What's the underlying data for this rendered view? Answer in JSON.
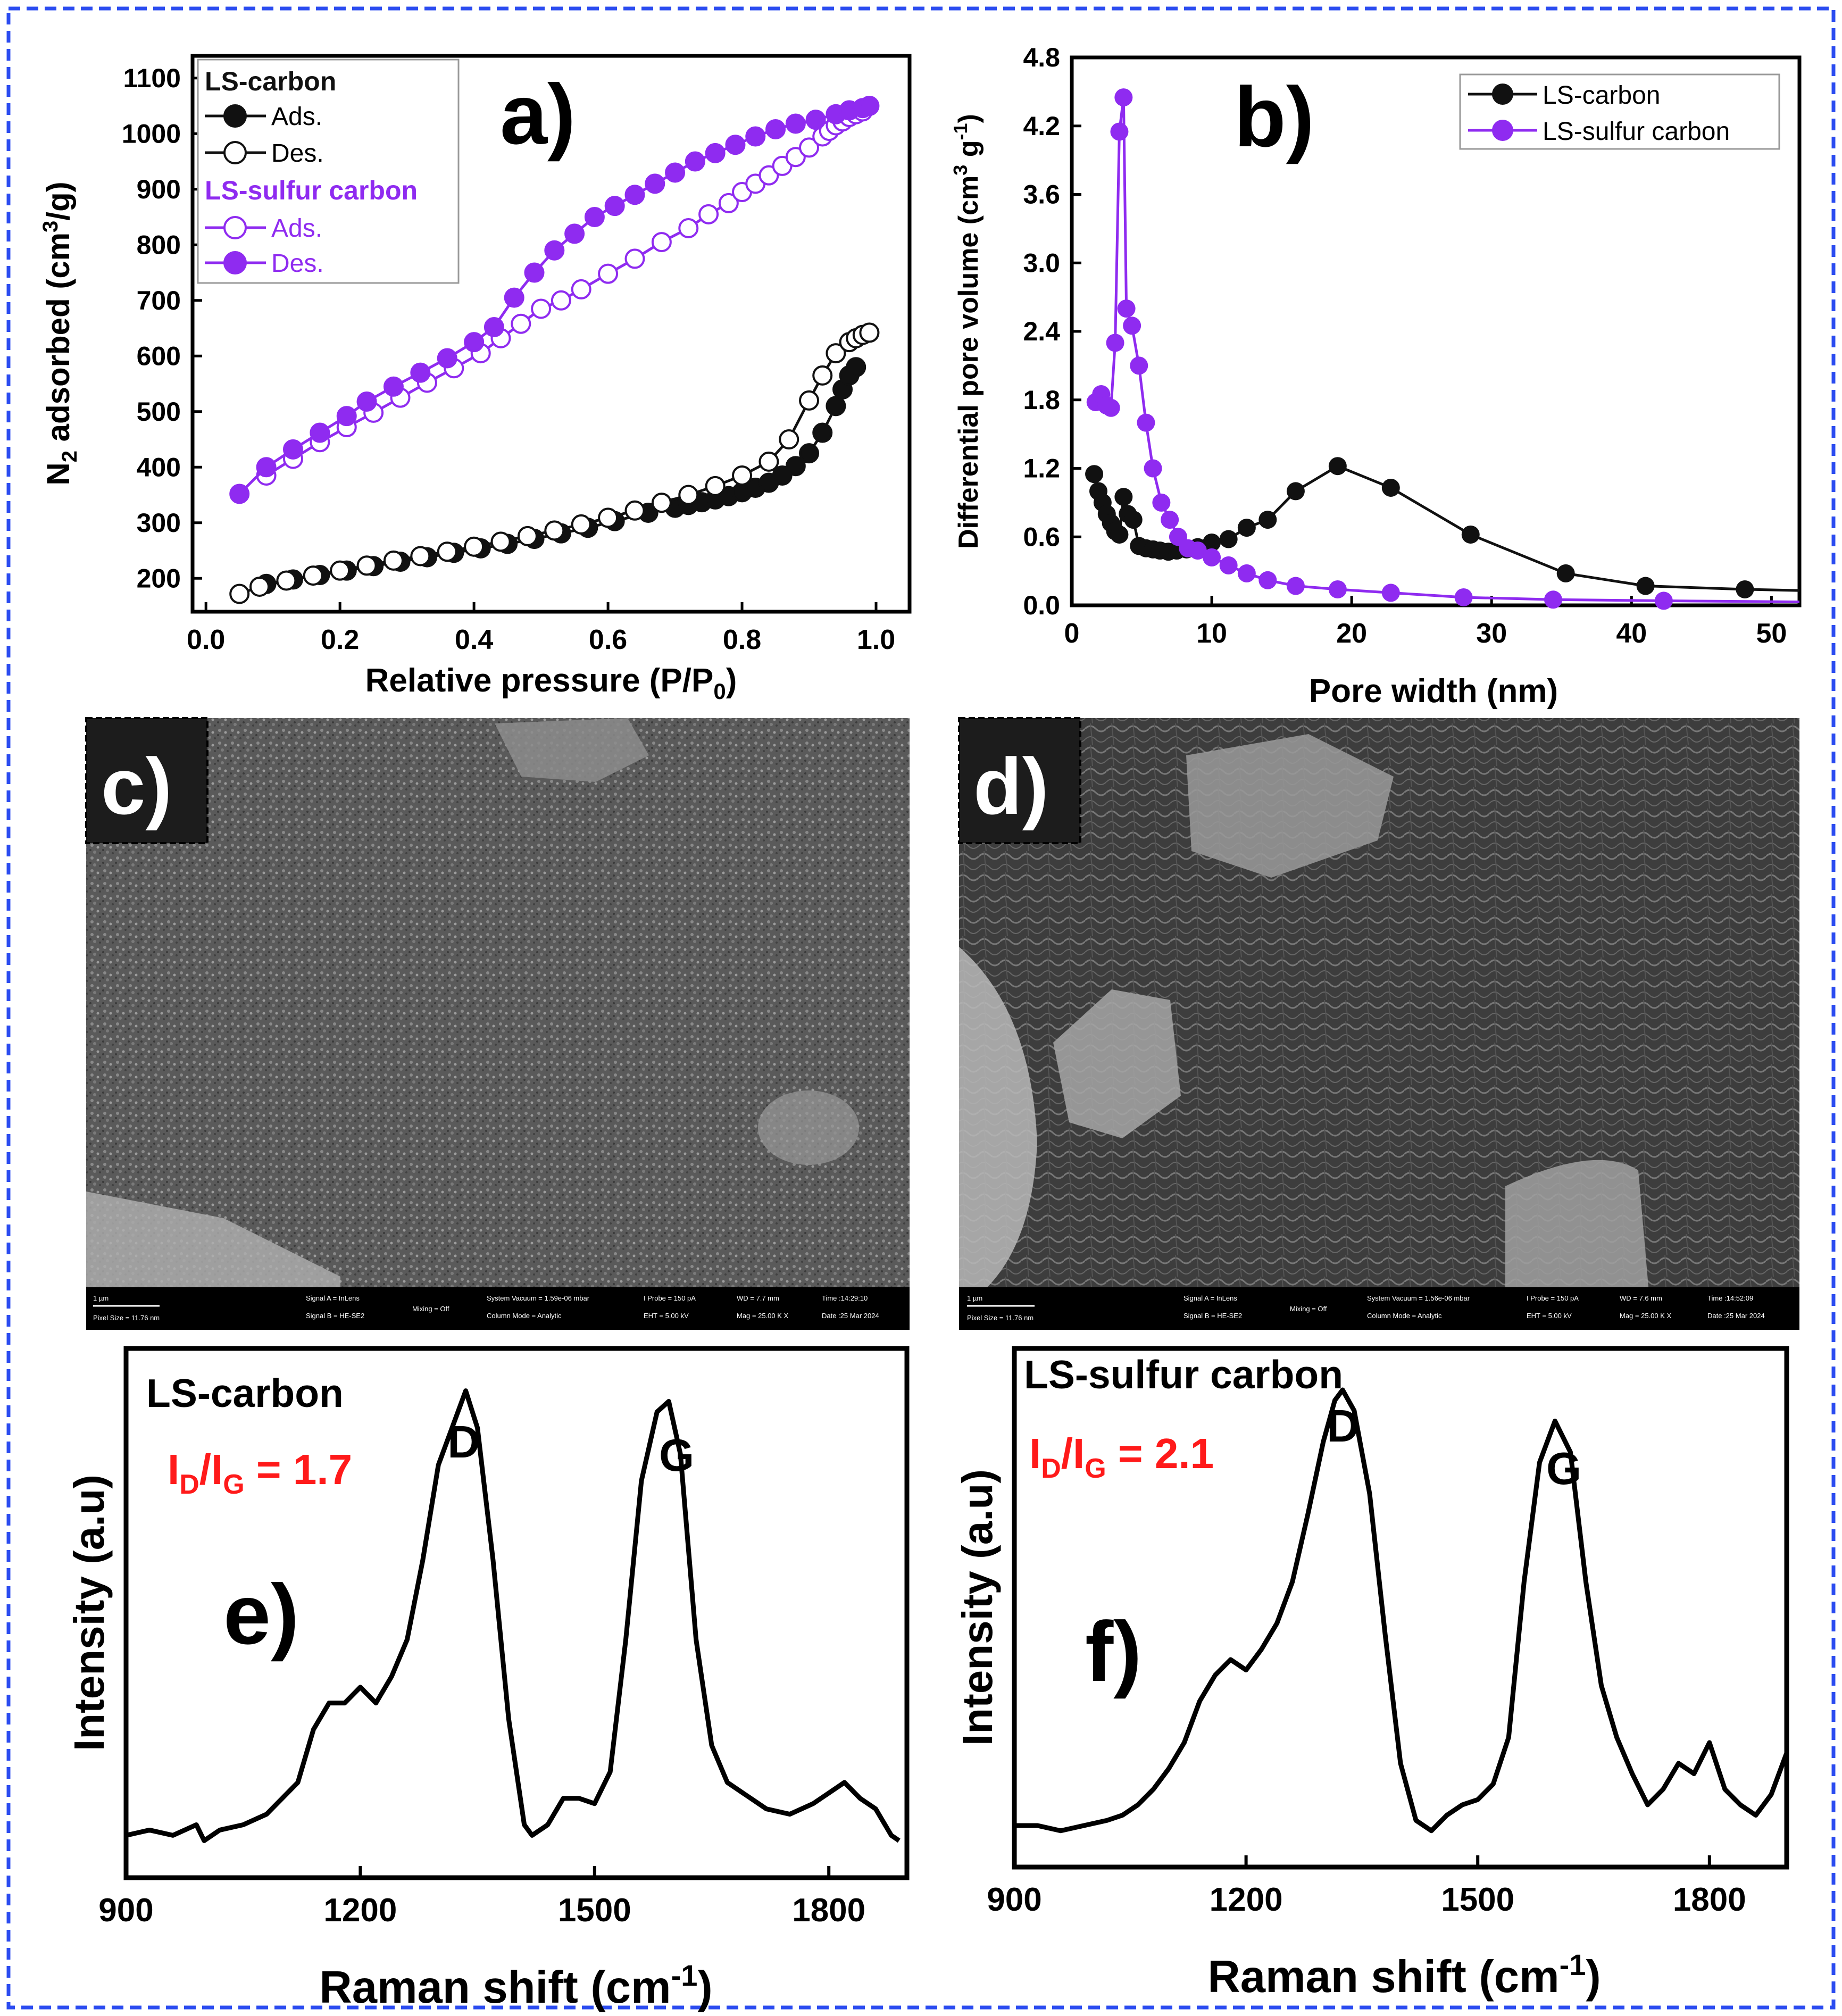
{
  "panel_labels": {
    "a": "a)",
    "b": "b)",
    "c": "c)",
    "d": "d)",
    "e": "e)",
    "f": "f)"
  },
  "colors": {
    "black_series": "#111111",
    "purple_series": "#8f2bf0",
    "ratio_text": "#ff1a1a",
    "frame_blue": "#2b4cf0"
  },
  "sem": {
    "c": {
      "scale": "1 µm",
      "pixel": "Pixel Size = 11.76 nm",
      "sigA": "Signal A = InLens",
      "sigB": "Signal B = HE-SE2",
      "mix": "Mixing = Off",
      "vac": "System Vacuum = 1.59e-06 mbar",
      "col": "Column Mode = Analytic",
      "probe": "I Probe = 150 pA",
      "eht": "EHT = 5.00 kV",
      "wd": "WD = 7.7 mm",
      "mag": "Mag = 25.00 K X",
      "time": "Time :14:29:10",
      "date": "Date :25 Mar 2024"
    },
    "d": {
      "scale": "1 µm",
      "pixel": "Pixel Size = 11.76 nm",
      "sigA": "Signal A = InLens",
      "sigB": "Signal B = HE-SE2",
      "mix": "Mixing = Off",
      "vac": "System Vacuum = 1.56e-06 mbar",
      "col": "Column Mode = Analytic",
      "probe": "I Probe = 150 pA",
      "eht": "EHT = 5.00 kV",
      "wd": "WD = 7.6 mm",
      "mag": "Mag = 25.00 K X",
      "time": "Time :14:52:09",
      "date": "Date :25 Mar 2024"
    }
  },
  "chart_data": [
    {
      "id": "a",
      "type": "scatter",
      "xlabel": "Relative pressure (P/P",
      "xlabel_sub": "0",
      "xlabel_end": ")",
      "ylabel_a": "N",
      "ylabel_sub": "2",
      "ylabel_b": " adsorbed (cm",
      "ylabel_sup": "3",
      "ylabel_c": "/g)",
      "xlim": [
        -0.02,
        1.05
      ],
      "ylim": [
        140,
        1140
      ],
      "xticks": [
        "0.0",
        "0.2",
        "0.4",
        "0.6",
        "0.8",
        "1.0"
      ],
      "yticks": [
        "200",
        "300",
        "400",
        "500",
        "600",
        "700",
        "800",
        "900",
        "1000",
        "1100"
      ],
      "legend": {
        "group1": "LS-carbon",
        "ads": "Ads.",
        "des": "Des.",
        "group2": "LS-sulfur carbon",
        "ads2": "Ads.",
        "des2": "Des."
      },
      "series": [
        {
          "name": "LS-carbon Ads.",
          "color": "black",
          "fill": "filled",
          "x": [
            0.09,
            0.13,
            0.17,
            0.21,
            0.25,
            0.29,
            0.33,
            0.37,
            0.41,
            0.45,
            0.49,
            0.53,
            0.57,
            0.61,
            0.66,
            0.7,
            0.72,
            0.74,
            0.76,
            0.78,
            0.8,
            0.82,
            0.84,
            0.86,
            0.88,
            0.9,
            0.92,
            0.94,
            0.95,
            0.96,
            0.97
          ],
          "y": [
            190,
            198,
            206,
            214,
            222,
            230,
            238,
            246,
            254,
            262,
            271,
            281,
            291,
            303,
            318,
            327,
            332,
            337,
            342,
            348,
            355,
            363,
            372,
            385,
            402,
            425,
            462,
            510,
            540,
            565,
            580
          ]
        },
        {
          "name": "LS-carbon Des.",
          "color": "black",
          "fill": "open",
          "x": [
            0.05,
            0.08,
            0.12,
            0.16,
            0.2,
            0.24,
            0.28,
            0.32,
            0.36,
            0.4,
            0.44,
            0.48,
            0.52,
            0.56,
            0.6,
            0.64,
            0.68,
            0.72,
            0.76,
            0.8,
            0.84,
            0.87,
            0.9,
            0.92,
            0.94,
            0.96,
            0.97,
            0.98,
            0.99
          ],
          "y": [
            172,
            185,
            196,
            205,
            214,
            223,
            232,
            240,
            248,
            257,
            266,
            276,
            286,
            297,
            309,
            322,
            336,
            350,
            366,
            385,
            410,
            450,
            520,
            565,
            605,
            625,
            632,
            638,
            642
          ]
        },
        {
          "name": "LS-sulfur carbon Ads.",
          "color": "purple",
          "fill": "open",
          "x": [
            0.09,
            0.13,
            0.17,
            0.21,
            0.25,
            0.29,
            0.33,
            0.37,
            0.41,
            0.44,
            0.47,
            0.5,
            0.53,
            0.56,
            0.6,
            0.64,
            0.68,
            0.72,
            0.75,
            0.78,
            0.8,
            0.82,
            0.84,
            0.86,
            0.88,
            0.9,
            0.92,
            0.93,
            0.94,
            0.95,
            0.96,
            0.97,
            0.98
          ],
          "y": [
            385,
            415,
            445,
            472,
            498,
            525,
            552,
            578,
            605,
            632,
            658,
            685,
            700,
            720,
            748,
            775,
            805,
            830,
            855,
            875,
            895,
            910,
            925,
            942,
            958,
            975,
            995,
            1005,
            1015,
            1022,
            1030,
            1035,
            1040
          ]
        },
        {
          "name": "LS-sulfur carbon Des.",
          "color": "purple",
          "fill": "filled",
          "x": [
            0.05,
            0.09,
            0.13,
            0.17,
            0.21,
            0.24,
            0.28,
            0.32,
            0.36,
            0.4,
            0.43,
            0.46,
            0.49,
            0.52,
            0.55,
            0.58,
            0.61,
            0.64,
            0.67,
            0.7,
            0.73,
            0.76,
            0.79,
            0.82,
            0.85,
            0.88,
            0.91,
            0.94,
            0.96,
            0.98,
            0.99
          ],
          "y": [
            352,
            400,
            432,
            462,
            492,
            518,
            545,
            570,
            596,
            625,
            652,
            705,
            750,
            790,
            820,
            850,
            870,
            890,
            910,
            930,
            950,
            965,
            980,
            995,
            1008,
            1018,
            1025,
            1035,
            1042,
            1046,
            1050
          ]
        }
      ]
    },
    {
      "id": "b",
      "type": "line",
      "xlabel": "Pore width (nm)",
      "ylabel": "Differential pore volume (cm",
      "ylabel_sup": "3",
      "ylabel_mid": " g",
      "ylabel_sup2": "-1",
      "ylabel_end": ")",
      "xlim": [
        0,
        52
      ],
      "ylim": [
        0,
        4.8
      ],
      "xticks": [
        "0",
        "10",
        "20",
        "30",
        "40",
        "50"
      ],
      "yticks": [
        "0.0",
        "0.6",
        "1.2",
        "1.8",
        "2.4",
        "3.0",
        "3.6",
        "4.2",
        "4.8"
      ],
      "legend": [
        "LS-carbon",
        "LS-sulfur carbon"
      ],
      "series": [
        {
          "name": "LS-carbon",
          "color": "black",
          "x": [
            1.6,
            1.9,
            2.2,
            2.5,
            2.8,
            3.1,
            3.4,
            3.7,
            4.0,
            4.4,
            4.8,
            5.3,
            5.8,
            6.3,
            6.9,
            7.5,
            8.2,
            9.0,
            10.0,
            11.2,
            12.5,
            14.0,
            16.0,
            19.0,
            22.8,
            28.5,
            35.3,
            41.0,
            48.1,
            52
          ],
          "y": [
            1.15,
            1.0,
            0.9,
            0.8,
            0.72,
            0.65,
            0.62,
            0.95,
            0.8,
            0.75,
            0.52,
            0.5,
            0.49,
            0.48,
            0.47,
            0.48,
            0.49,
            0.51,
            0.55,
            0.58,
            0.68,
            0.75,
            1.0,
            1.22,
            1.03,
            0.62,
            0.28,
            0.17,
            0.14,
            0.13
          ]
        },
        {
          "name": "LS-sulfur carbon",
          "color": "purple",
          "x": [
            1.7,
            2.1,
            2.5,
            2.8,
            3.1,
            3.4,
            3.7,
            3.9,
            4.3,
            4.8,
            5.3,
            5.8,
            6.4,
            7.0,
            7.6,
            8.3,
            9.0,
            10.0,
            11.2,
            12.5,
            14.0,
            16.0,
            19.0,
            22.8,
            28.0,
            34.4,
            42.3,
            52
          ],
          "y": [
            1.78,
            1.85,
            1.75,
            1.73,
            2.3,
            4.15,
            4.45,
            2.6,
            2.45,
            2.1,
            1.6,
            1.2,
            0.9,
            0.75,
            0.6,
            0.5,
            0.48,
            0.42,
            0.35,
            0.28,
            0.22,
            0.17,
            0.14,
            0.11,
            0.07,
            0.05,
            0.04,
            0.03
          ]
        }
      ]
    },
    {
      "id": "e",
      "type": "line",
      "title": "LS-carbon",
      "ratio_main": "I",
      "ratio_sub1": "D",
      "ratio_mid": "/I",
      "ratio_sub2": "G",
      "ratio_val": " = 1.7",
      "peak_D": "D",
      "peak_G": "G",
      "xlabel": "Raman shift (cm",
      "xlabel_sup": "-1",
      "xlabel_end": ")",
      "ylabel": "Intensity (a.u)",
      "xlim": [
        900,
        1900
      ],
      "ylim": [
        0,
        1
      ],
      "xticks": [
        "900",
        "1200",
        "1500",
        "1800"
      ],
      "x": [
        900,
        930,
        960,
        990,
        1000,
        1020,
        1050,
        1080,
        1100,
        1120,
        1140,
        1160,
        1180,
        1200,
        1220,
        1240,
        1260,
        1280,
        1300,
        1320,
        1335,
        1350,
        1370,
        1390,
        1410,
        1420,
        1440,
        1460,
        1480,
        1500,
        1520,
        1540,
        1560,
        1580,
        1595,
        1610,
        1630,
        1650,
        1670,
        1690,
        1720,
        1750,
        1780,
        1800,
        1820,
        1840,
        1860,
        1880,
        1890
      ],
      "y": [
        0.08,
        0.09,
        0.08,
        0.1,
        0.07,
        0.09,
        0.1,
        0.12,
        0.15,
        0.18,
        0.28,
        0.33,
        0.33,
        0.36,
        0.33,
        0.38,
        0.45,
        0.6,
        0.78,
        0.86,
        0.92,
        0.85,
        0.6,
        0.3,
        0.1,
        0.08,
        0.1,
        0.15,
        0.15,
        0.14,
        0.2,
        0.45,
        0.75,
        0.88,
        0.9,
        0.8,
        0.45,
        0.25,
        0.18,
        0.16,
        0.13,
        0.12,
        0.14,
        0.16,
        0.18,
        0.15,
        0.13,
        0.08,
        0.07
      ]
    },
    {
      "id": "f",
      "type": "line",
      "title": "LS-sulfur carbon",
      "ratio_main": "I",
      "ratio_sub1": "D",
      "ratio_mid": "/I",
      "ratio_sub2": "G",
      "ratio_val": " = 2.1",
      "peak_D": "D",
      "peak_G": "G",
      "xlabel": "Raman shift (cm",
      "xlabel_sup": "-1",
      "xlabel_end": ")",
      "ylabel": "Intensity (a.u)",
      "xlim": [
        900,
        1900
      ],
      "ylim": [
        0,
        1
      ],
      "xticks": [
        "900",
        "1200",
        "1500",
        "1800"
      ],
      "x": [
        900,
        930,
        960,
        990,
        1020,
        1040,
        1060,
        1080,
        1100,
        1120,
        1140,
        1160,
        1180,
        1200,
        1220,
        1240,
        1260,
        1280,
        1300,
        1315,
        1325,
        1340,
        1360,
        1380,
        1400,
        1420,
        1440,
        1460,
        1480,
        1500,
        1520,
        1540,
        1560,
        1580,
        1600,
        1620,
        1640,
        1660,
        1680,
        1700,
        1720,
        1740,
        1760,
        1780,
        1800,
        1820,
        1840,
        1860,
        1880,
        1900
      ],
      "y": [
        0.08,
        0.08,
        0.07,
        0.08,
        0.09,
        0.1,
        0.12,
        0.15,
        0.19,
        0.24,
        0.32,
        0.37,
        0.4,
        0.38,
        0.42,
        0.47,
        0.55,
        0.68,
        0.82,
        0.9,
        0.92,
        0.88,
        0.72,
        0.45,
        0.2,
        0.09,
        0.07,
        0.1,
        0.12,
        0.13,
        0.16,
        0.25,
        0.55,
        0.78,
        0.86,
        0.8,
        0.55,
        0.35,
        0.25,
        0.18,
        0.12,
        0.15,
        0.2,
        0.18,
        0.24,
        0.15,
        0.12,
        0.1,
        0.14,
        0.22
      ]
    }
  ]
}
